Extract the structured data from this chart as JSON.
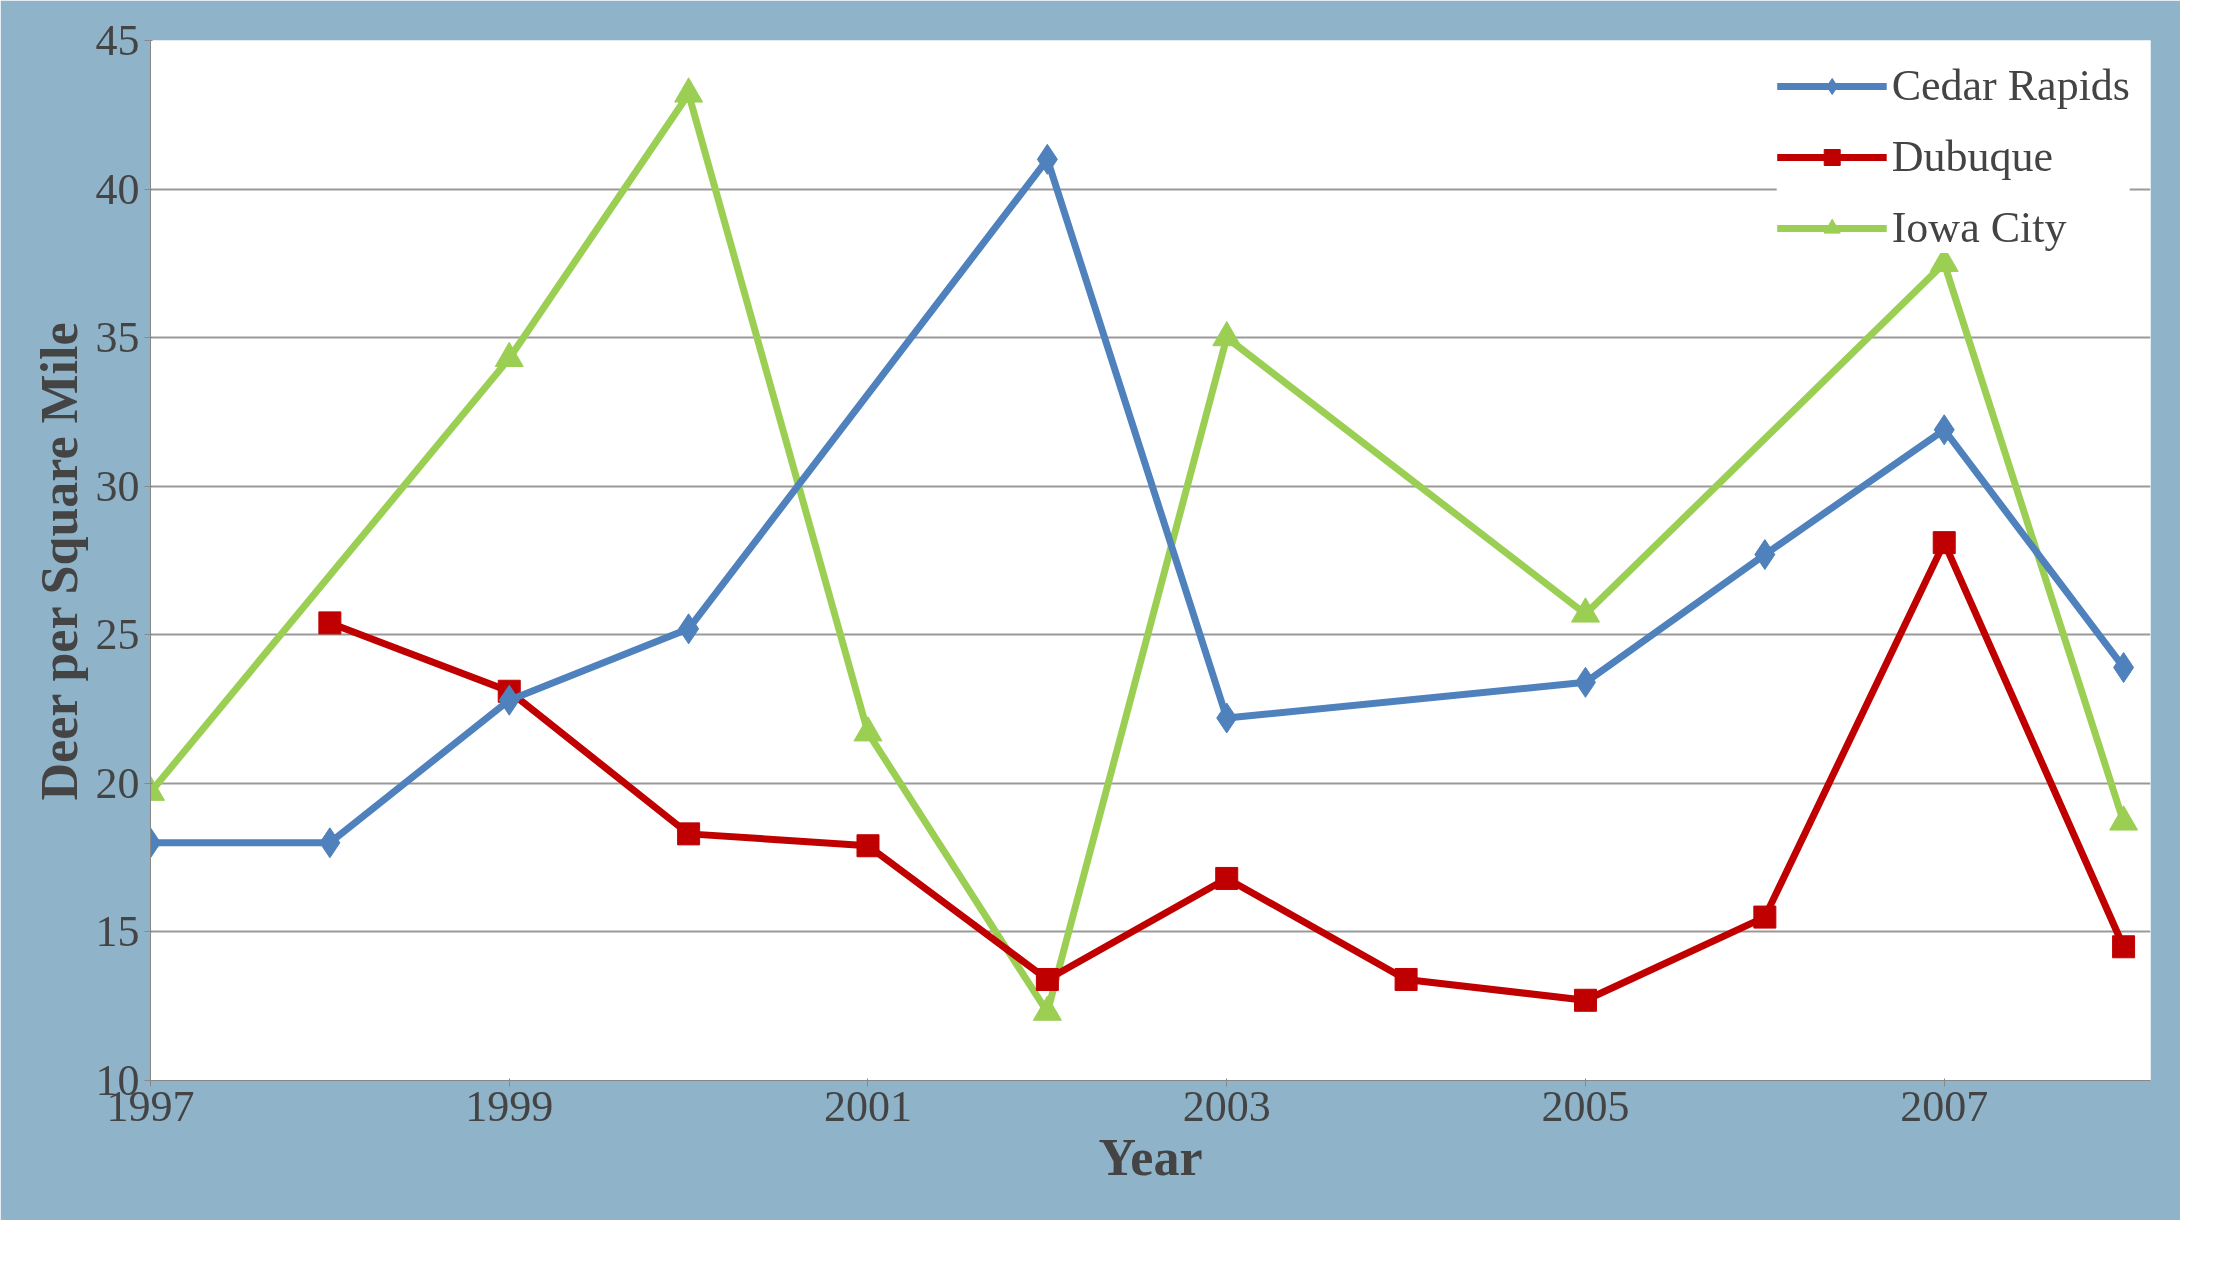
{
  "chart_data": {
    "type": "line",
    "xlabel": "Year",
    "ylabel": "Deer per Square Mile",
    "x": [
      1997,
      1998,
      1999,
      2000,
      2001,
      2002,
      2003,
      2004,
      2005,
      2006,
      2007,
      2008
    ],
    "series": [
      {
        "name": "Cedar Rapids",
        "color": "#4f81bd",
        "marker": "diamond",
        "values": [
          18.0,
          18.0,
          22.8,
          25.2,
          null,
          41.0,
          22.2,
          null,
          23.4,
          27.7,
          31.9,
          23.9
        ]
      },
      {
        "name": "Dubuque",
        "color": "#c00000",
        "marker": "square",
        "values": [
          null,
          25.4,
          23.1,
          18.3,
          17.9,
          13.4,
          16.8,
          13.4,
          12.7,
          15.5,
          28.1,
          14.5
        ]
      },
      {
        "name": "Iowa City",
        "color": "#9bcf53",
        "marker": "triangle",
        "values": [
          19.7,
          null,
          34.3,
          43.2,
          21.7,
          12.3,
          35.0,
          null,
          25.7,
          null,
          37.5,
          18.7
        ]
      }
    ],
    "xlim": [
      1997,
      2008.15
    ],
    "xticks": [
      1997,
      1999,
      2001,
      2003,
      2005,
      2007
    ],
    "ylim": [
      10,
      45
    ],
    "yticks": [
      10,
      15,
      20,
      25,
      30,
      35,
      40,
      45
    ],
    "grid": "y",
    "legend": "top right",
    "line_style": "solid"
  }
}
